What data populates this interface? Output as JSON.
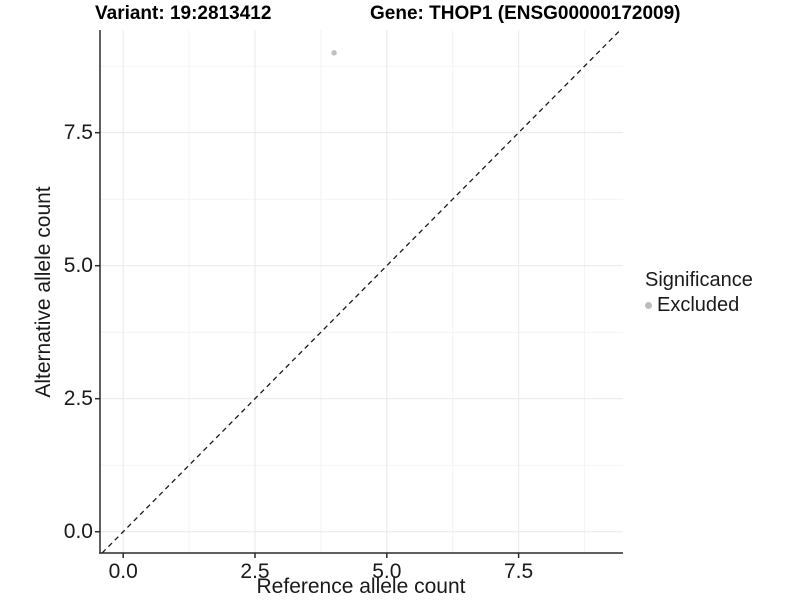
{
  "header": {
    "variant_title": "Variant: 19:2813412",
    "gene_title": "Gene: THOP1 (ENSG00000172009)"
  },
  "chart_data": {
    "type": "scatter",
    "title": "",
    "xlabel": "Reference allele count",
    "ylabel": "Alternative allele count",
    "x_ticks": {
      "values": [
        0,
        2.5,
        5,
        7.5
      ],
      "labels": [
        "0.0",
        "2.5",
        "5.0",
        "7.5"
      ]
    },
    "y_ticks": {
      "values": [
        0,
        2.5,
        5,
        7.5
      ],
      "labels": [
        "0.0",
        "2.5",
        "5.0",
        "7.5"
      ]
    },
    "x_minor": [
      1.25,
      3.75,
      6.25,
      8.75
    ],
    "y_minor": [
      1.25,
      3.75,
      6.25,
      8.75
    ],
    "xlim": [
      -0.44,
      9.48
    ],
    "ylim": [
      -0.4,
      9.43
    ],
    "grid": true,
    "points": [
      {
        "x": 4,
        "y": 9,
        "significance": "Excluded"
      }
    ],
    "identity_line": {
      "equation": "y = x",
      "style": "dashed",
      "color": "#1a1a1a"
    },
    "legend": {
      "title": "Significance",
      "position": "right",
      "items": [
        {
          "label": "Excluded",
          "color": "#bdbdbd"
        }
      ]
    },
    "colors": {
      "point": "#bfbfbf",
      "grid_major": "#e9e9e9",
      "grid_minor": "#f4f4f4",
      "axis": "#2b2b2b",
      "tick_text": "#1a1a1a"
    }
  }
}
